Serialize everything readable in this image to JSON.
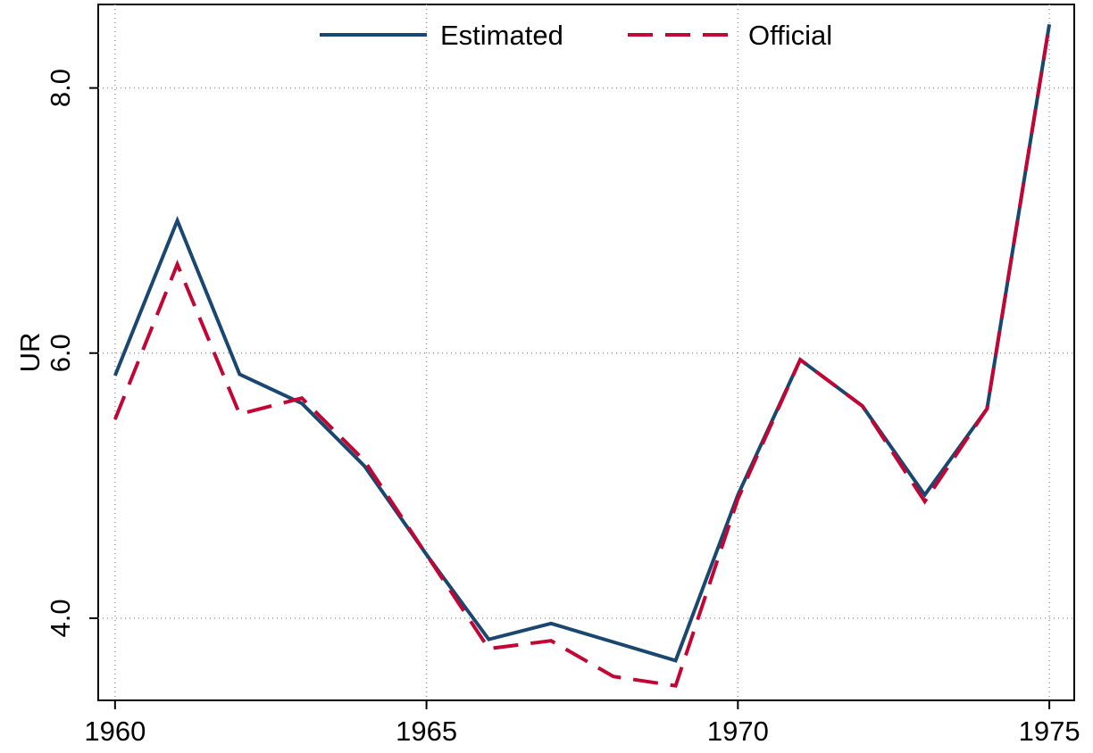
{
  "chart_data": {
    "type": "line",
    "y_label": "UR",
    "x": [
      1960,
      1961,
      1962,
      1963,
      1964,
      1965,
      1966,
      1967,
      1968,
      1969,
      1970,
      1971,
      1972,
      1973,
      1974,
      1975
    ],
    "series": [
      {
        "name": "Estimated",
        "color": "#1a476f",
        "dash": "none",
        "values": [
          5.83,
          7.0,
          5.84,
          5.62,
          5.15,
          4.48,
          3.84,
          3.96,
          3.82,
          3.68,
          4.93,
          5.95,
          5.6,
          4.93,
          5.58,
          8.48
        ]
      },
      {
        "name": "Official",
        "color": "#c10534",
        "dash": "long",
        "values": [
          5.5,
          6.67,
          5.54,
          5.66,
          5.19,
          4.48,
          3.77,
          3.83,
          3.56,
          3.49,
          4.9,
          5.95,
          5.6,
          4.88,
          5.58,
          8.48
        ]
      }
    ],
    "xlim": [
      1959.73,
      1975.4
    ],
    "ylim": [
      3.38,
      8.63
    ],
    "xticks": [
      1960,
      1965,
      1970,
      1975
    ],
    "yticks": [
      {
        "value": 4.0,
        "label": "4.0"
      },
      {
        "value": 6.0,
        "label": "6.0"
      },
      {
        "value": 8.0,
        "label": "8.0"
      }
    ],
    "grid": true,
    "legend": "top"
  }
}
